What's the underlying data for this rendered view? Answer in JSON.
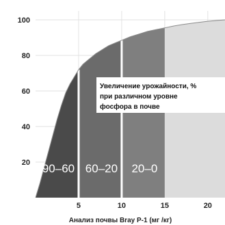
{
  "chart_data": {
    "type": "area",
    "xlabel": "Анализ почвы Bray P-1 (мг /кг)",
    "ylabel": "",
    "xlim": [
      0,
      22
    ],
    "ylim": [
      0,
      105
    ],
    "x_ticks": [
      5,
      10,
      15,
      20
    ],
    "y_ticks": [
      20,
      40,
      60,
      80,
      100
    ],
    "grid": true,
    "annotation": [
      "Увеличение урожайности, %",
      "при различном уровне",
      "фосфора в почве"
    ],
    "series": [
      {
        "x": [
          0,
          0.5,
          1,
          1.5,
          2,
          2.5,
          3,
          3.5,
          4,
          4.5,
          5,
          5.5,
          6,
          6.5,
          7,
          7.5,
          8,
          8.5,
          9,
          9.5,
          10,
          11,
          12,
          13,
          14,
          15,
          16,
          17,
          18,
          19,
          20,
          21,
          22
        ],
        "y": [
          0,
          8,
          17,
          26,
          35,
          44,
          52,
          59,
          64,
          68,
          72,
          75,
          77,
          79,
          81,
          82.5,
          84,
          85.5,
          86.5,
          87.5,
          88.5,
          90.5,
          92,
          93.5,
          94.5,
          95.5,
          96.5,
          97.3,
          98,
          98.6,
          99.2,
          99.6,
          100
        ]
      }
    ],
    "zones": [
      {
        "label": "90–60",
        "x_from": 0,
        "x_to": 5,
        "color": "#4a4a4a"
      },
      {
        "label": "60–20",
        "x_from": 5,
        "x_to": 10,
        "color": "#6b6b6b"
      },
      {
        "label": "20–0",
        "x_from": 10,
        "x_to": 15,
        "color": "#7f7f7f"
      }
    ],
    "after_zone_color": "#dcdcdc"
  }
}
